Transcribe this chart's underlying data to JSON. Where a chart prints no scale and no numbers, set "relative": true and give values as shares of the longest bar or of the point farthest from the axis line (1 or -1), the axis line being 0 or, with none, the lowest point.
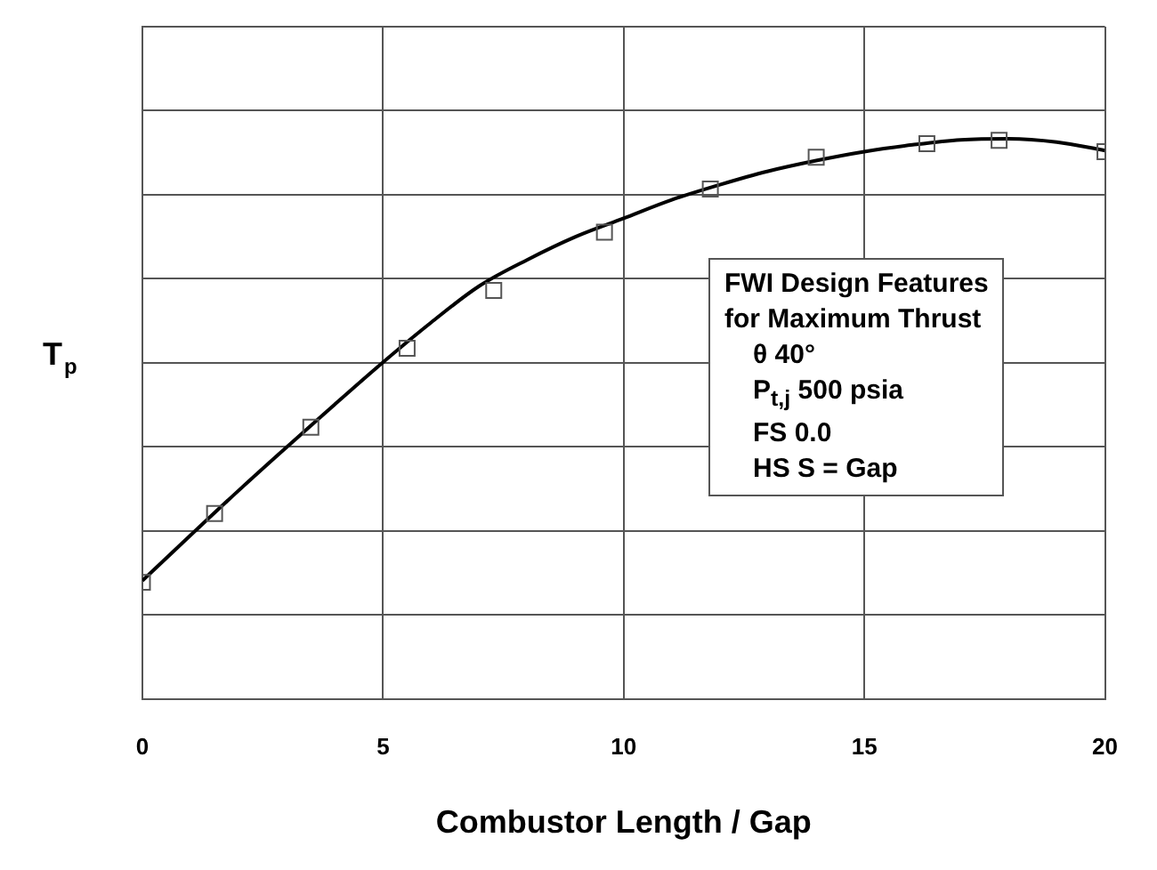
{
  "chart_data": {
    "type": "line",
    "relative": true,
    "xlabel": "Combustor Length / Gap",
    "ylabel": "T$_{p}$",
    "xlim": [
      0,
      20
    ],
    "xticks": [
      0,
      5,
      10,
      15,
      20
    ],
    "grid": true,
    "legend": false,
    "annotations": [
      "FWI Design Features",
      "for Maximum Thrust",
      "θ 40°",
      "P$_{t,j}$ 500 psia",
      "FS 0.0",
      "HS S = Gap"
    ],
    "series": [
      {
        "color": "#000000",
        "marker": "none",
        "line_style": "solid",
        "x": [
          0,
          2,
          4,
          5,
          6,
          7,
          8,
          9,
          10,
          11,
          12,
          13,
          14,
          15,
          16,
          17,
          18,
          19,
          20
        ],
        "values": [
          0.211,
          0.372,
          0.526,
          0.601,
          0.672,
          0.737,
          0.784,
          0.825,
          0.858,
          0.891,
          0.918,
          0.942,
          0.961,
          0.977,
          0.989,
          0.998,
          1.0,
          0.994,
          0.979
        ]
      },
      {
        "type": "scatter",
        "color": "#555555",
        "marker": "square",
        "x": [
          0,
          1.5,
          3.5,
          5.5,
          7.3,
          9.6,
          11.8,
          14.0,
          16.3,
          17.8,
          20
        ],
        "values": [
          0.208,
          0.331,
          0.485,
          0.626,
          0.729,
          0.833,
          0.91,
          0.967,
          0.991,
          0.997,
          0.977
        ]
      }
    ]
  }
}
